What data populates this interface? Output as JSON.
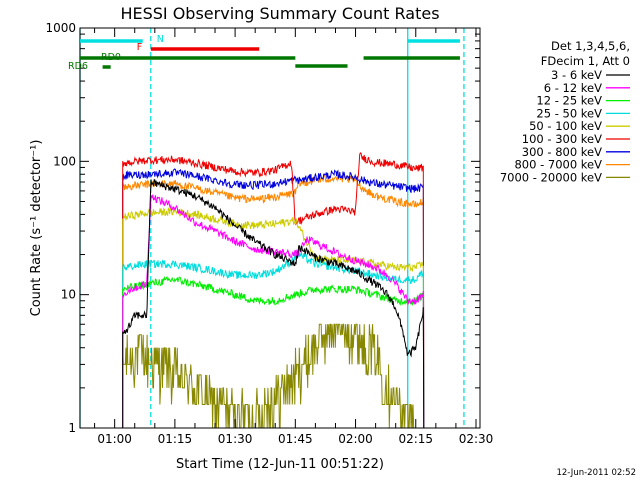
{
  "chart_data": {
    "type": "line",
    "title": "HESSI Observing Summary Count Rates",
    "xlabel": "Start Time (12-Jun-11 00:51:22)",
    "ylabel": "Count Rate (s⁻¹ detector⁻¹)",
    "yscale": "log",
    "ylim": [
      1,
      1000
    ],
    "xlim": [
      "00:51:22",
      "02:31:00"
    ],
    "x_ticks": [
      "01:00",
      "01:15",
      "01:30",
      "01:45",
      "02:00",
      "02:15",
      "02:30"
    ],
    "y_ticks": [
      "1",
      "10",
      "100",
      "1000"
    ],
    "grid": false,
    "legend_position": "right",
    "legend_header": [
      "Det 1,3,4,5,6,",
      "FDecim 1, Att 0"
    ],
    "footer": "12-Jun-2011 02:52",
    "vertical_lines": [
      {
        "time": "00:51:22",
        "style": "solid",
        "color": "#00e0e0"
      },
      {
        "time": "01:09:00",
        "style": "dashed",
        "color": "#00e0e0"
      },
      {
        "time": "02:13:00",
        "style": "solid",
        "color": "#00e0e0"
      },
      {
        "time": "02:27:00",
        "style": "dashed",
        "color": "#00e0e0"
      }
    ],
    "flag_bars": [
      {
        "label": "N",
        "color": "#00e0e0",
        "segments": [
          [
            "00:51:22",
            "01:07:00"
          ],
          [
            "02:13:00",
            "02:26:00"
          ]
        ]
      },
      {
        "label": "F",
        "color": "#ee0000",
        "segments": [
          [
            "01:09:00",
            "01:36:00"
          ]
        ]
      },
      {
        "label": "RD0",
        "color": "#007700",
        "segments": [
          [
            "00:51:22",
            "01:45:00"
          ],
          [
            "02:02:00",
            "02:26:00"
          ]
        ]
      },
      {
        "label": "",
        "color": "#007700",
        "segments": [
          [
            "01:45:00",
            "01:58:00"
          ]
        ]
      },
      {
        "label": "RD6",
        "color": "#007700",
        "segments": [
          [
            "00:57:00",
            "00:59:00"
          ]
        ]
      }
    ],
    "series": [
      {
        "name": "3 - 6 keV",
        "color": "#000000",
        "x": [
          "01:02:00",
          "01:04:00",
          "01:05:00",
          "01:08:00",
          "01:09:00",
          "01:15:00",
          "01:20:00",
          "01:25:00",
          "01:30:00",
          "01:35:00",
          "01:40:00",
          "01:45:00",
          "01:46:00",
          "01:50:00",
          "01:55:00",
          "02:00:00",
          "02:05:00",
          "02:08:00",
          "02:10:00",
          "02:12:00",
          "02:13:00",
          "02:15:00",
          "02:17:00"
        ],
        "y": [
          5,
          6,
          7,
          7,
          70,
          62,
          55,
          45,
          33,
          25,
          20,
          17,
          23,
          19,
          17,
          15,
          12,
          10,
          8,
          5,
          3.5,
          4,
          8
        ]
      },
      {
        "name": "6 - 12 keV",
        "color": "#ff00ff",
        "x": [
          "01:02:00",
          "01:04:00",
          "01:08:00",
          "01:09:00",
          "01:15:00",
          "01:20:00",
          "01:25:00",
          "01:30:00",
          "01:35:00",
          "01:40:00",
          "01:45:00",
          "01:46:00",
          "01:48:00",
          "01:52:00",
          "01:56:00",
          "02:00:00",
          "02:05:00",
          "02:08:00",
          "02:10:00",
          "02:12:00",
          "02:13:00",
          "02:15:00",
          "02:17:00"
        ],
        "y": [
          10,
          11,
          12,
          55,
          45,
          35,
          30,
          25,
          22,
          21,
          20,
          21,
          26,
          23,
          20,
          18,
          16,
          14,
          12,
          10,
          9,
          9,
          10
        ]
      },
      {
        "name": "12 - 25 keV",
        "color": "#00ee00",
        "x": [
          "01:02:00",
          "01:08:00",
          "01:15:00",
          "01:20:00",
          "01:25:00",
          "01:30:00",
          "01:35:00",
          "01:40:00",
          "01:45:00",
          "01:50:00",
          "01:55:00",
          "02:00:00",
          "02:05:00",
          "02:10:00",
          "02:15:00",
          "02:17:00"
        ],
        "y": [
          11,
          12,
          13,
          12,
          11,
          10,
          9,
          9,
          10,
          11,
          11,
          11,
          10,
          9,
          9,
          10
        ]
      },
      {
        "name": "25 - 50 keV",
        "color": "#00dddd",
        "x": [
          "01:02:00",
          "01:08:00",
          "01:15:00",
          "01:20:00",
          "01:25:00",
          "01:30:00",
          "01:35:00",
          "01:40:00",
          "01:43:00",
          "01:46:00",
          "01:50:00",
          "01:55:00",
          "02:00:00",
          "02:05:00",
          "02:10:00",
          "02:15:00",
          "02:17:00"
        ],
        "y": [
          16,
          17,
          17,
          16,
          15,
          14,
          14,
          15,
          17,
          20,
          17,
          16,
          15,
          14,
          13,
          13,
          15
        ]
      },
      {
        "name": "50 - 100 keV",
        "color": "#cccc00",
        "x": [
          "01:02:00",
          "01:08:00",
          "01:15:00",
          "01:20:00",
          "01:25:00",
          "01:30:00",
          "01:35:00",
          "01:40:00",
          "01:45:00",
          "01:50:00",
          "01:55:00",
          "02:00:00",
          "02:05:00",
          "02:10:00",
          "02:15:00",
          "02:17:00"
        ],
        "y": [
          38,
          41,
          42,
          40,
          37,
          34,
          33,
          34,
          36,
          19,
          18,
          18,
          17,
          16,
          16,
          17
        ]
      },
      {
        "name": "100 - 300 keV",
        "color": "#ee0000",
        "x": [
          "01:02:00",
          "01:08:00",
          "01:15:00",
          "01:20:00",
          "01:25:00",
          "01:30:00",
          "01:35:00",
          "01:40:00",
          "01:44:00",
          "01:45:00",
          "01:46:00",
          "01:50:00",
          "01:55:00",
          "02:00:00",
          "02:01:00",
          "02:02:00",
          "02:05:00",
          "02:10:00",
          "02:15:00",
          "02:17:00"
        ],
        "y": [
          97,
          102,
          103,
          97,
          90,
          84,
          82,
          86,
          98,
          35,
          36,
          40,
          44,
          42,
          110,
          106,
          98,
          95,
          88,
          90
        ]
      },
      {
        "name": "300 - 800 keV",
        "color": "#0000dd",
        "x": [
          "01:02:00",
          "01:08:00",
          "01:15:00",
          "01:20:00",
          "01:25:00",
          "01:30:00",
          "01:35:00",
          "01:40:00",
          "01:45:00",
          "01:46:00",
          "01:50:00",
          "01:55:00",
          "02:00:00",
          "02:02:00",
          "02:05:00",
          "02:10:00",
          "02:15:00",
          "02:17:00"
        ],
        "y": [
          78,
          80,
          82,
          78,
          72,
          67,
          66,
          68,
          73,
          72,
          76,
          80,
          76,
          72,
          68,
          65,
          62,
          64
        ]
      },
      {
        "name": "800 - 7000 keV",
        "color": "#ff8800",
        "x": [
          "01:02:00",
          "01:08:00",
          "01:15:00",
          "01:20:00",
          "01:25:00",
          "01:30:00",
          "01:35:00",
          "01:40:00",
          "01:45:00",
          "01:46:00",
          "01:50:00",
          "01:55:00",
          "02:00:00",
          "02:02:00",
          "02:05:00",
          "02:10:00",
          "02:15:00",
          "02:17:00"
        ],
        "y": [
          64,
          67,
          68,
          63,
          58,
          53,
          52,
          54,
          58,
          68,
          72,
          75,
          72,
          62,
          55,
          50,
          47,
          50
        ]
      },
      {
        "name": "7000 - 20000 keV",
        "color": "#888800",
        "x": [
          "01:02:00",
          "01:06:00",
          "01:10:00",
          "01:15:00",
          "01:20:00",
          "01:25:00",
          "01:28:00",
          "01:32:00",
          "01:36:00",
          "01:40:00",
          "01:45:00",
          "01:50:00",
          "01:55:00",
          "02:00:00",
          "02:05:00",
          "02:08:00",
          "02:12:00",
          "02:15:00"
        ],
        "y": [
          3,
          3.5,
          3,
          2.5,
          2,
          1.5,
          1.3,
          1.2,
          1.3,
          1.6,
          2.5,
          4,
          6,
          5,
          3.5,
          2,
          1.2,
          1
        ]
      }
    ]
  }
}
